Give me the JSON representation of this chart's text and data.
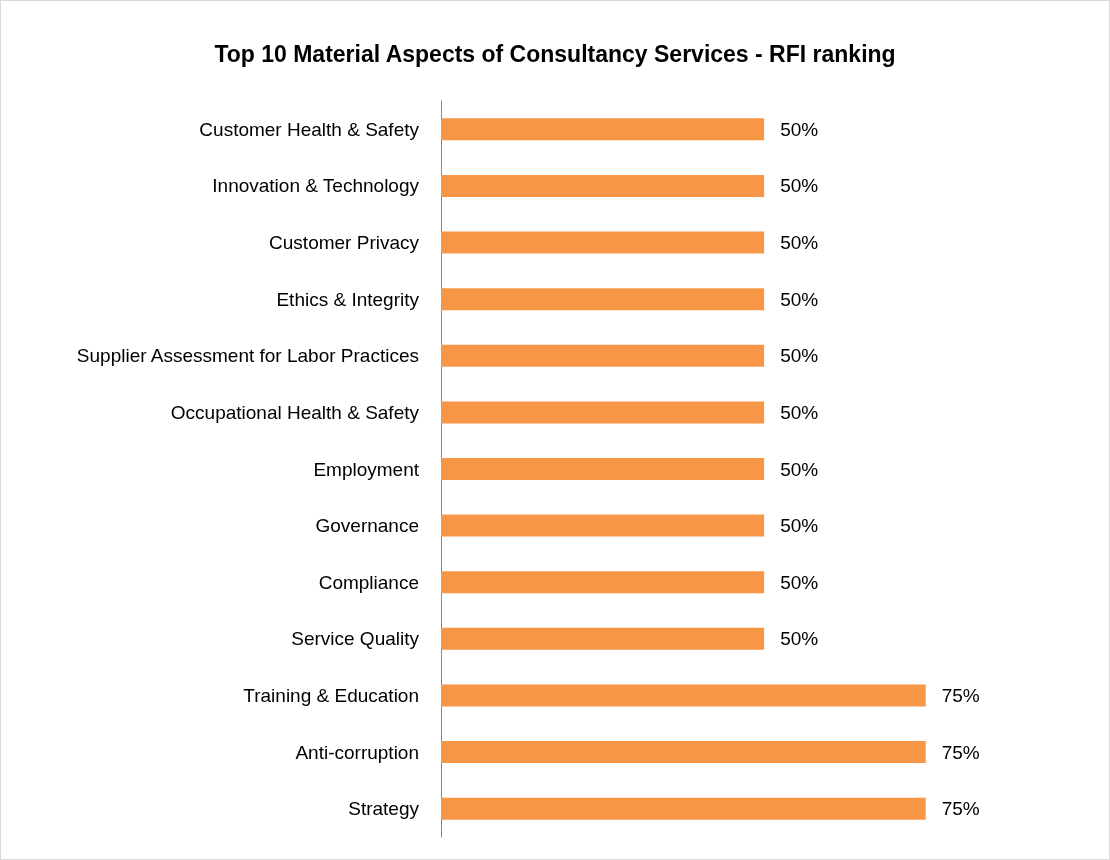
{
  "chart_data": {
    "type": "bar",
    "orientation": "horizontal",
    "title": "Top 10 Material Aspects of Consultancy Services - RFI ranking",
    "categories": [
      "Customer Health & Safety",
      "Innovation & Technology",
      "Customer Privacy",
      "Ethics & Integrity",
      "Supplier Assessment for Labor Practices",
      "Occupational Health & Safety",
      "Employment",
      "Governance",
      "Compliance",
      "Service Quality",
      "Training & Education",
      "Anti-corruption",
      "Strategy"
    ],
    "values": [
      50,
      50,
      50,
      50,
      50,
      50,
      50,
      50,
      50,
      50,
      75,
      75,
      75
    ],
    "value_labels": [
      "50%",
      "50%",
      "50%",
      "50%",
      "50%",
      "50%",
      "50%",
      "50%",
      "50%",
      "50%",
      "75%",
      "75%",
      "75%"
    ],
    "color": "#f79646"
  }
}
